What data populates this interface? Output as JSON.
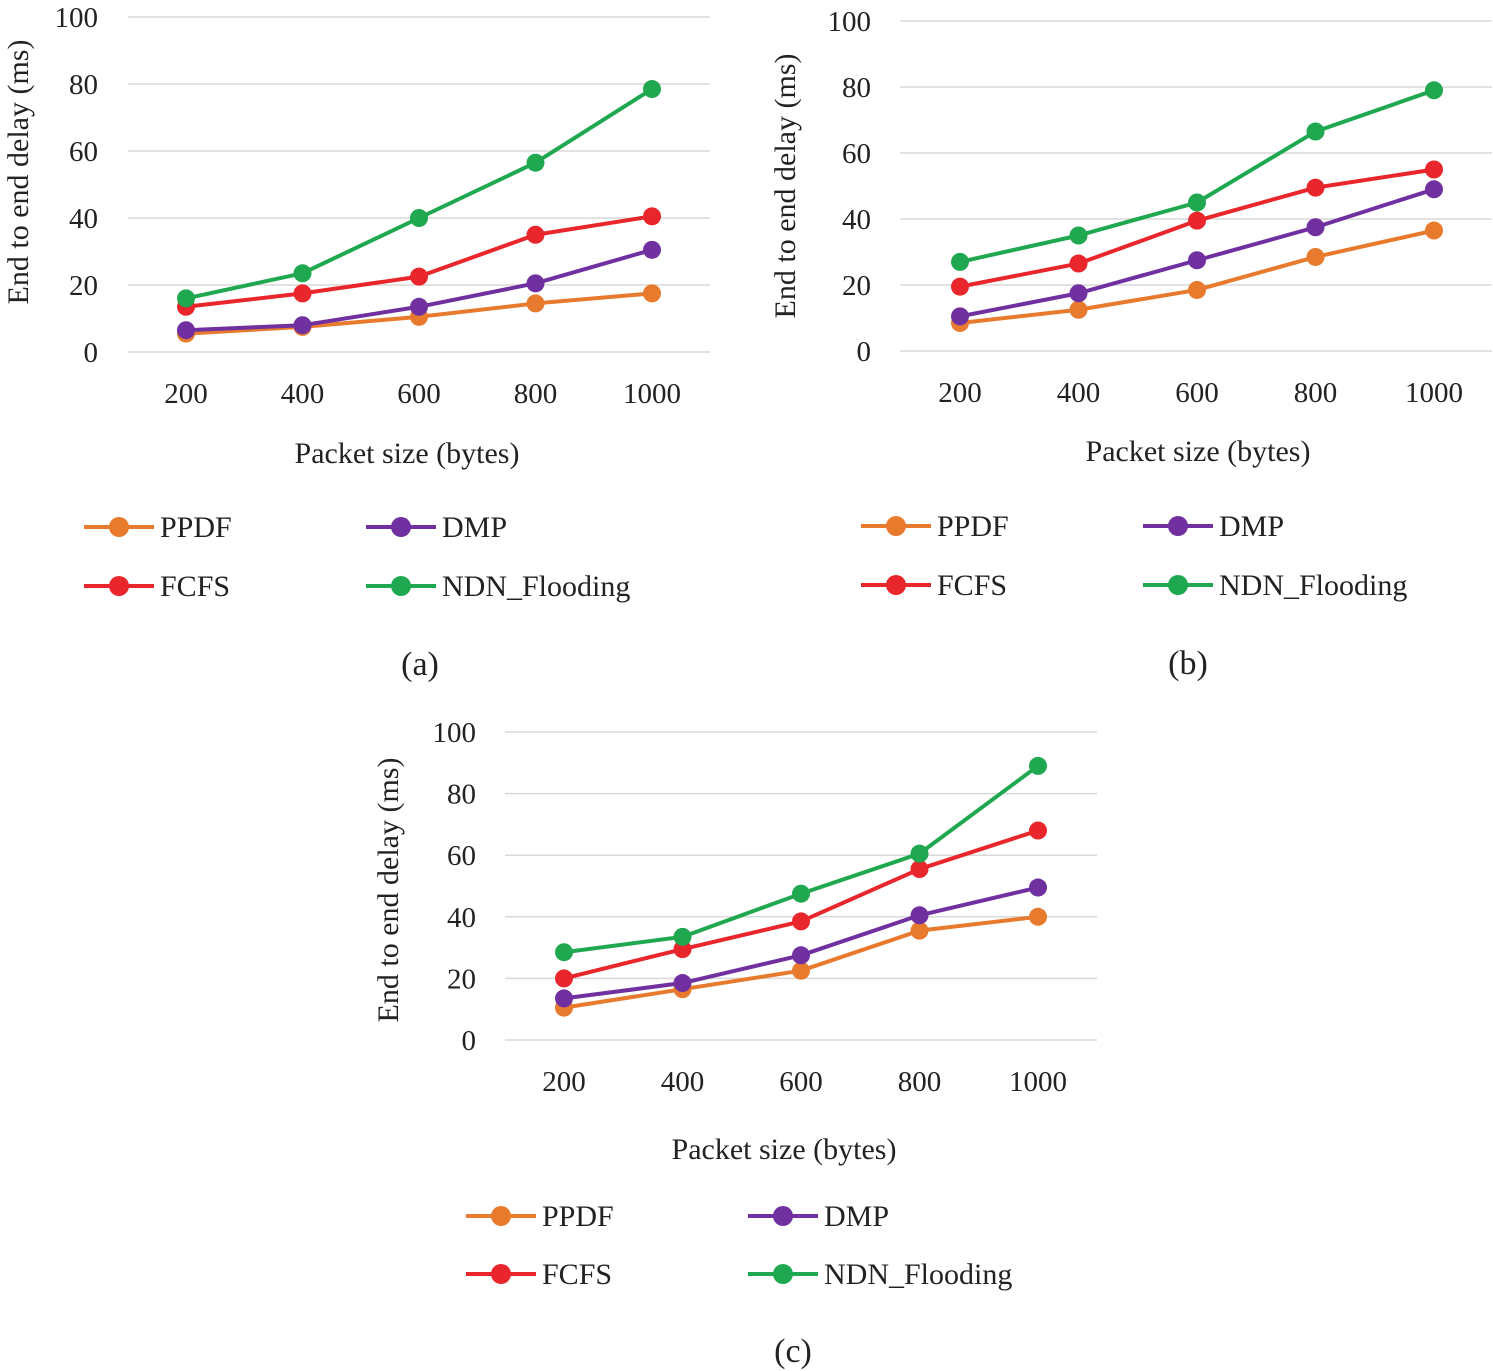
{
  "colors": {
    "PPDF": "#e87a2e",
    "DMP": "#7030a0",
    "FCFS": "#e8262b",
    "NDN_Flooding": "#1fa84f",
    "grid": "#d9d9d9",
    "text": "#222222"
  },
  "chart_data": [
    {
      "type": "line",
      "panel_label": "(a)",
      "xlabel": "Packet size (bytes)",
      "ylabel": "End to end delay (ms)",
      "categories": [
        "200",
        "400",
        "600",
        "800",
        "1000"
      ],
      "ylim": [
        0,
        100
      ],
      "yticks": [
        "0",
        "20",
        "40",
        "60",
        "80",
        "100"
      ],
      "grid": true,
      "legend_position": "bottom",
      "series": [
        {
          "name": "PPDF",
          "values": [
            5.5,
            7.5,
            10.5,
            14.5,
            17.5
          ]
        },
        {
          "name": "DMP",
          "values": [
            6.5,
            8,
            13.5,
            20.5,
            30.5
          ]
        },
        {
          "name": "FCFS",
          "values": [
            13.5,
            17.5,
            22.5,
            35,
            40.5
          ]
        },
        {
          "name": "NDN_Flooding",
          "values": [
            16,
            23.5,
            40,
            56.5,
            78.5
          ]
        }
      ]
    },
    {
      "type": "line",
      "panel_label": "(b)",
      "xlabel": "Packet size (bytes)",
      "ylabel": "End to end delay (ms)",
      "categories": [
        "200",
        "400",
        "600",
        "800",
        "1000"
      ],
      "ylim": [
        0,
        100
      ],
      "yticks": [
        "0",
        "20",
        "40",
        "60",
        "80",
        "100"
      ],
      "grid": true,
      "legend_position": "bottom",
      "series": [
        {
          "name": "PPDF",
          "values": [
            8.5,
            12.5,
            18.5,
            28.5,
            36.5
          ]
        },
        {
          "name": "DMP",
          "values": [
            10.5,
            17.5,
            27.5,
            37.5,
            49
          ]
        },
        {
          "name": "FCFS",
          "values": [
            19.5,
            26.5,
            39.5,
            49.5,
            55
          ]
        },
        {
          "name": "NDN_Flooding",
          "values": [
            27,
            35,
            45,
            66.5,
            79
          ]
        }
      ]
    },
    {
      "type": "line",
      "panel_label": "(c)",
      "xlabel": "Packet size (bytes)",
      "ylabel": "End to end delay (ms)",
      "categories": [
        "200",
        "400",
        "600",
        "800",
        "1000"
      ],
      "ylim": [
        0,
        100
      ],
      "yticks": [
        "0",
        "20",
        "40",
        "60",
        "80",
        "100"
      ],
      "grid": true,
      "legend_position": "bottom",
      "series": [
        {
          "name": "PPDF",
          "values": [
            10.5,
            16.5,
            22.5,
            35.5,
            40
          ]
        },
        {
          "name": "DMP",
          "values": [
            13.5,
            18.5,
            27.5,
            40.5,
            49.5
          ]
        },
        {
          "name": "FCFS",
          "values": [
            20,
            29.5,
            38.5,
            55.5,
            68
          ]
        },
        {
          "name": "NDN_Flooding",
          "values": [
            28.5,
            33.5,
            47.5,
            60.5,
            89
          ]
        }
      ]
    }
  ]
}
